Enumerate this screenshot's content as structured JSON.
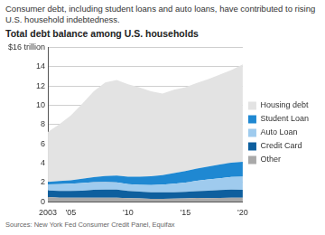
{
  "chart_data": {
    "type": "area",
    "subtitle": "Consumer debt, including student loans and auto loans, have contributed to rising U.S. household indebtedness.",
    "title": "Total debt balance among U.S. households",
    "source": "Sources: New York Fed Consumer Credit Panel, Equifax",
    "x": [
      2003,
      2004,
      2005,
      2006,
      2007,
      2008,
      2009,
      2010,
      2011,
      2012,
      2013,
      2014,
      2015,
      2016,
      2017,
      2018,
      2019,
      2020
    ],
    "series": [
      {
        "name": "Housing debt",
        "color": "#e3e3e3",
        "values": [
          5.18,
          5.87,
          6.73,
          7.78,
          8.91,
          9.68,
          9.91,
          9.58,
          9.25,
          8.8,
          8.45,
          8.63,
          8.71,
          8.89,
          9.06,
          9.34,
          9.61,
          10.1
        ]
      },
      {
        "name": "Student Loan",
        "color": "#1f88d2",
        "values": [
          0.24,
          0.32,
          0.36,
          0.45,
          0.51,
          0.61,
          0.7,
          0.76,
          0.84,
          0.9,
          0.99,
          1.11,
          1.19,
          1.26,
          1.34,
          1.41,
          1.49,
          1.54
        ]
      },
      {
        "name": "Auto Loan",
        "color": "#9fcbee",
        "values": [
          0.64,
          0.72,
          0.73,
          0.79,
          0.8,
          0.81,
          0.76,
          0.71,
          0.7,
          0.75,
          0.79,
          0.88,
          0.96,
          1.07,
          1.17,
          1.23,
          1.3,
          1.35
        ]
      },
      {
        "name": "Credit Card",
        "color": "#0e5f9e",
        "values": [
          0.69,
          0.69,
          0.71,
          0.73,
          0.81,
          0.84,
          0.84,
          0.76,
          0.71,
          0.68,
          0.68,
          0.66,
          0.68,
          0.71,
          0.76,
          0.81,
          0.85,
          0.82
        ]
      },
      {
        "name": "Other",
        "color": "#a9a9a9",
        "values": [
          0.48,
          0.42,
          0.42,
          0.42,
          0.42,
          0.41,
          0.41,
          0.36,
          0.34,
          0.31,
          0.31,
          0.33,
          0.34,
          0.39,
          0.38,
          0.4,
          0.41,
          0.42
        ]
      }
    ],
    "xlim": [
      2003,
      2020
    ],
    "xticks": [
      {
        "value": 2003,
        "label": "2003"
      },
      {
        "value": 2005,
        "label": "'05"
      },
      {
        "value": 2010,
        "label": "'10"
      },
      {
        "value": 2015,
        "label": "'15"
      },
      {
        "value": 2020,
        "label": "'20"
      }
    ],
    "ylim": [
      0,
      16
    ],
    "yticks": [
      0,
      2,
      4,
      6,
      8,
      10,
      12,
      14,
      {
        "value": 16,
        "label": "$16 trillion"
      }
    ],
    "stacked": true,
    "grid": true,
    "legend": "right"
  }
}
